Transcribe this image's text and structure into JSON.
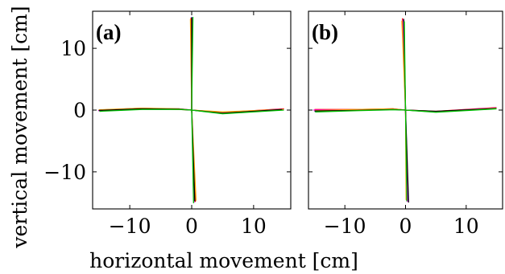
{
  "xlabel": "horizontal movement [cm]",
  "ylabel": "vertical movement [cm]",
  "x_ticks": [
    {
      "value": -10,
      "label": "−10"
    },
    {
      "value": 0,
      "label": "0"
    },
    {
      "value": 10,
      "label": "10"
    }
  ],
  "y_ticks": [
    {
      "value": 10,
      "label": "10"
    },
    {
      "value": 0,
      "label": "0"
    },
    {
      "value": -10,
      "label": "−10"
    }
  ],
  "colors": [
    "#0000ff",
    "#ff0000",
    "#ff00ff",
    "#ffa500",
    "#000000",
    "#00c000"
  ],
  "chart_data": [
    {
      "type": "line",
      "panel_label": "(a)",
      "xlim": [
        -16,
        16
      ],
      "ylim": [
        -16,
        16
      ],
      "grid": false,
      "series": [
        {
          "color": "#0000ff",
          "points": [
            [
              -15,
              -0.1
            ],
            [
              -8,
              0.2
            ],
            [
              -2,
              0.2
            ],
            [
              0,
              0
            ],
            [
              0,
              15
            ],
            [
              0,
              0
            ],
            [
              0.5,
              -14.5
            ],
            [
              0,
              0
            ],
            [
              5,
              -0.5
            ],
            [
              14.8,
              0.1
            ]
          ]
        },
        {
          "color": "#ff0000",
          "points": [
            [
              -15,
              0.0
            ],
            [
              -8,
              0.3
            ],
            [
              -2,
              0.1
            ],
            [
              0,
              0
            ],
            [
              -0.1,
              14.9
            ],
            [
              0,
              0
            ],
            [
              0.6,
              -14.8
            ],
            [
              0,
              0
            ],
            [
              5,
              -0.4
            ],
            [
              14.9,
              0.2
            ]
          ]
        },
        {
          "color": "#ff00ff",
          "points": [
            [
              -15.1,
              -0.1
            ],
            [
              -8,
              0.25
            ],
            [
              -2,
              0.15
            ],
            [
              0,
              0
            ],
            [
              0.1,
              14.8
            ],
            [
              0,
              0
            ],
            [
              0.4,
              -14.9
            ],
            [
              0,
              0
            ],
            [
              5,
              -0.45
            ],
            [
              14.7,
              0.15
            ]
          ]
        },
        {
          "color": "#ffa500",
          "points": [
            [
              -15,
              0.05
            ],
            [
              -8,
              0.3
            ],
            [
              -2,
              0.2
            ],
            [
              0,
              0
            ],
            [
              -0.2,
              14.7
            ],
            [
              0,
              0
            ],
            [
              0.7,
              -14.6
            ],
            [
              0,
              0
            ],
            [
              5,
              -0.3
            ],
            [
              14.8,
              0.1
            ]
          ]
        },
        {
          "color": "#000000",
          "points": [
            [
              -15,
              -0.05
            ],
            [
              -8,
              0.2
            ],
            [
              -2,
              0.15
            ],
            [
              0,
              0
            ],
            [
              0,
              14.9
            ],
            [
              0,
              0
            ],
            [
              0.5,
              -14.7
            ],
            [
              0,
              0
            ],
            [
              5,
              -0.5
            ],
            [
              14.6,
              0.1
            ]
          ]
        },
        {
          "color": "#00c000",
          "points": [
            [
              -14.9,
              -0.2
            ],
            [
              -8,
              0.1
            ],
            [
              -2,
              0.1
            ],
            [
              0,
              0
            ],
            [
              0.2,
              15.0
            ],
            [
              0,
              0
            ],
            [
              0.3,
              -15.0
            ],
            [
              0,
              0
            ],
            [
              5,
              -0.6
            ],
            [
              14.9,
              0.0
            ]
          ]
        }
      ]
    },
    {
      "type": "line",
      "panel_label": "(b)",
      "xlim": [
        -16,
        16
      ],
      "ylim": [
        -16,
        16
      ],
      "grid": false,
      "series": [
        {
          "color": "#0000ff",
          "points": [
            [
              -15,
              -0.2
            ],
            [
              -8,
              0.0
            ],
            [
              -2,
              0.1
            ],
            [
              0,
              0
            ],
            [
              -0.3,
              14.5
            ],
            [
              0,
              0
            ],
            [
              0.4,
              -14.6
            ],
            [
              0,
              0
            ],
            [
              5,
              -0.3
            ],
            [
              15,
              0.3
            ]
          ]
        },
        {
          "color": "#ff0000",
          "points": [
            [
              -15,
              0.1
            ],
            [
              -8,
              0.1
            ],
            [
              -2,
              0.2
            ],
            [
              0,
              0
            ],
            [
              -0.5,
              14.8
            ],
            [
              0,
              0
            ],
            [
              0.2,
              -14.4
            ],
            [
              0,
              0
            ],
            [
              5,
              -0.2
            ],
            [
              15,
              0.4
            ]
          ]
        },
        {
          "color": "#ff00ff",
          "points": [
            [
              -15.2,
              0.0
            ],
            [
              -8,
              0.05
            ],
            [
              -2,
              0.15
            ],
            [
              0,
              0
            ],
            [
              -0.4,
              14.6
            ],
            [
              0,
              0
            ],
            [
              0.3,
              -14.8
            ],
            [
              0,
              0
            ],
            [
              5,
              -0.25
            ],
            [
              15,
              0.35
            ]
          ]
        },
        {
          "color": "#ffa500",
          "points": [
            [
              -15,
              -0.1
            ],
            [
              -8,
              0.1
            ],
            [
              -2,
              0.2
            ],
            [
              0,
              0
            ],
            [
              -0.6,
              14.4
            ],
            [
              0,
              0
            ],
            [
              0.1,
              -14.5
            ],
            [
              0,
              0
            ],
            [
              5,
              -0.3
            ],
            [
              15,
              0.3
            ]
          ]
        },
        {
          "color": "#000000",
          "points": [
            [
              -15,
              -0.15
            ],
            [
              -8,
              -0.05
            ],
            [
              -2,
              0.1
            ],
            [
              0,
              0
            ],
            [
              -0.3,
              14.7
            ],
            [
              0,
              0
            ],
            [
              0.5,
              -14.9
            ],
            [
              0,
              0
            ],
            [
              5,
              -0.2
            ],
            [
              15,
              0.25
            ]
          ]
        },
        {
          "color": "#00c000",
          "points": [
            [
              -14.9,
              -0.3
            ],
            [
              -8,
              -0.1
            ],
            [
              -2,
              0.05
            ],
            [
              0,
              0
            ],
            [
              -0.2,
              14.3
            ],
            [
              0,
              0
            ],
            [
              0.2,
              -14.7
            ],
            [
              0,
              0
            ],
            [
              5,
              -0.35
            ],
            [
              15,
              0.2
            ]
          ]
        }
      ]
    }
  ]
}
